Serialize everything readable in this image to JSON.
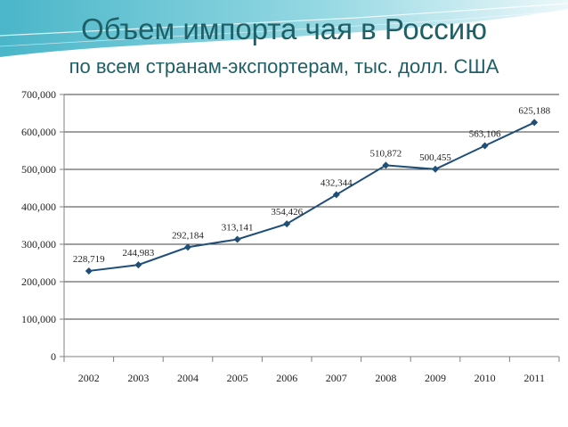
{
  "header": {
    "title": "Объем импорта чая в Россию",
    "subtitle": "по всем странам-экспортерам, тыс. долл. США"
  },
  "colors": {
    "line": "#1f4e79",
    "marker": "#1f4e79",
    "title": "#1f5f66",
    "axis": "#808080",
    "grid": "#000000",
    "banner_top": "#2aa9bf"
  },
  "chart_data": {
    "type": "line",
    "title": "Объем импорта чая в Россию",
    "subtitle": "по всем странам-экспортерам, тыс. долл. США",
    "xlabel": "",
    "ylabel": "",
    "categories": [
      "2002",
      "2003",
      "2004",
      "2005",
      "2006",
      "2007",
      "2008",
      "2009",
      "2010",
      "2011"
    ],
    "series": [
      {
        "values": [
          228719,
          244983,
          292184,
          313141,
          354426,
          432344,
          510872,
          500455,
          563106,
          625188
        ],
        "value_labels": [
          "228,719",
          "244,983",
          "292,184",
          "313,141",
          "354,426",
          "432,344",
          "510,872",
          "500,455",
          "563,106",
          "625,188"
        ]
      }
    ],
    "ylim": [
      0,
      700000
    ],
    "yticks": [
      0,
      100000,
      200000,
      300000,
      400000,
      500000,
      600000,
      700000
    ],
    "ytick_labels": [
      "0",
      "100,000",
      "200,000",
      "300,000",
      "400,000",
      "500,000",
      "600,000",
      "700,000"
    ],
    "grid": true,
    "legend": "none"
  }
}
